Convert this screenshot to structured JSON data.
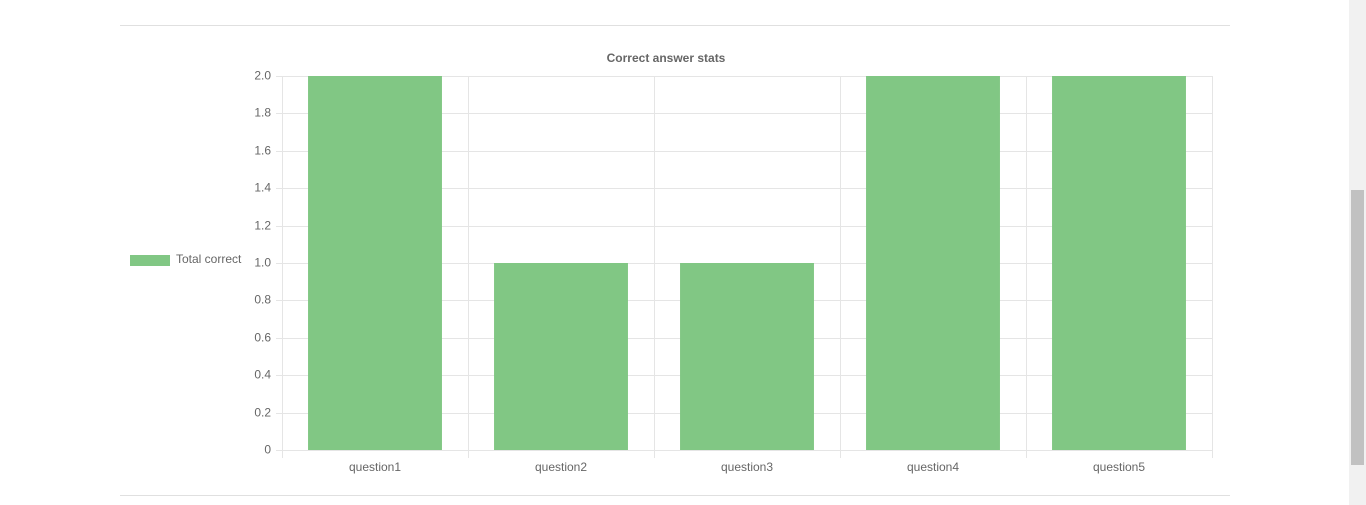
{
  "chart_data": {
    "type": "bar",
    "title": "Correct answer stats",
    "categories": [
      "question1",
      "question2",
      "question3",
      "question4",
      "question5"
    ],
    "series": [
      {
        "name": "Total correct",
        "color": "#81c784",
        "values": [
          2,
          1,
          1,
          2,
          2
        ]
      }
    ],
    "ylim": [
      0,
      2
    ],
    "yticks": [
      0,
      0.2,
      0.4,
      0.6,
      0.8,
      {
        "value": 1,
        "label": "1.0"
      },
      1.2,
      1.4,
      1.6,
      1.8,
      {
        "value": 2,
        "label": "2.0"
      }
    ],
    "grid": true,
    "legend": "left"
  }
}
